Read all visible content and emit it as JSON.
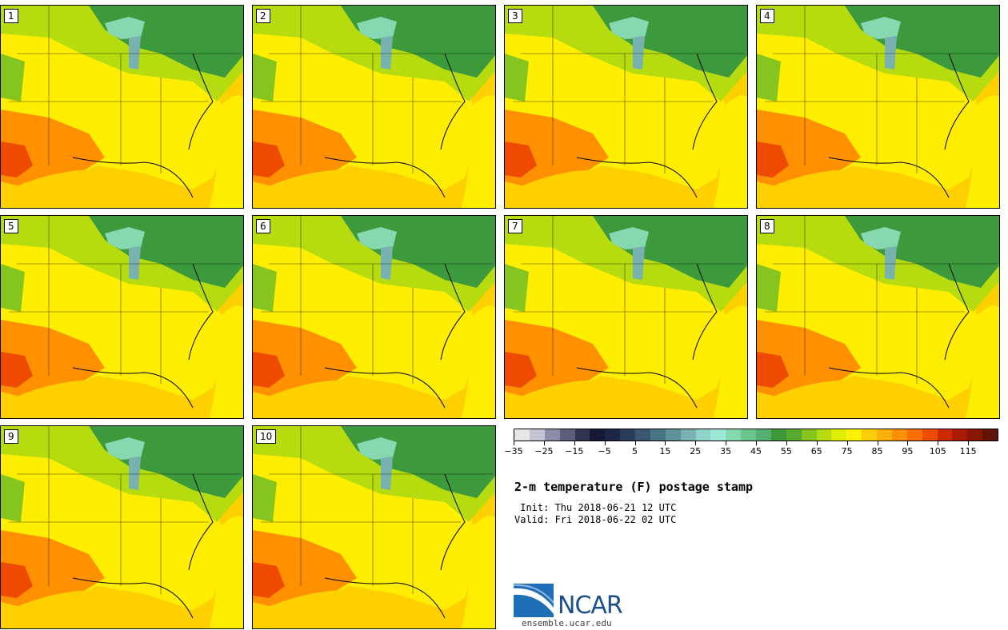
{
  "panels": [
    {
      "label": "1"
    },
    {
      "label": "2"
    },
    {
      "label": "3"
    },
    {
      "label": "4"
    },
    {
      "label": "5"
    },
    {
      "label": "6"
    },
    {
      "label": "7"
    },
    {
      "label": "8"
    },
    {
      "label": "9"
    },
    {
      "label": "10"
    }
  ],
  "colorbar": {
    "colors": [
      "#e6e6e6",
      "#c4c4d4",
      "#8c8cab",
      "#5a5f7e",
      "#2e3553",
      "#121a38",
      "#1d2745",
      "#2b3e5a",
      "#3a566e",
      "#4a7385",
      "#5f929b",
      "#78b2b0",
      "#8fd2c8",
      "#9ee8d6",
      "#86d8b0",
      "#6cc48e",
      "#52b070",
      "#3d9a3c",
      "#58aa2c",
      "#86c420",
      "#b6dc10",
      "#e2ee00",
      "#fff200",
      "#ffd000",
      "#ffb000",
      "#ff9000",
      "#ff7000",
      "#ee4a00",
      "#cc2a00",
      "#aa1a00",
      "#881500",
      "#601408"
    ],
    "tick_labels": [
      "−35",
      "−25",
      "−15",
      "−5",
      "5",
      "15",
      "25",
      "35",
      "45",
      "55",
      "65",
      "75",
      "85",
      "95",
      "105",
      "115"
    ]
  },
  "title": "2-m temperature (F) postage stamp",
  "init": " Init: Thu 2018-06-21 12 UTC",
  "valid": "Valid: Fri 2018-06-22 02 UTC",
  "logo": {
    "text": "NCAR",
    "url": "ensemble.ucar.edu"
  }
}
